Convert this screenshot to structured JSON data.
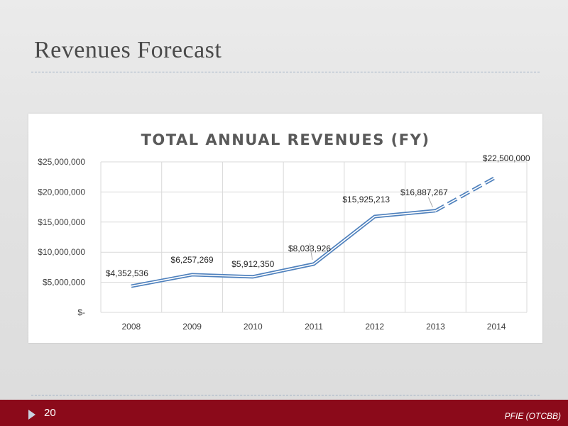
{
  "slide": {
    "title": "Revenues Forecast",
    "page_number": "20",
    "footer_label": "PFIE (OTCBB)"
  },
  "colors": {
    "title_text": "#4a4a4a",
    "footer_band": "#8b0a1a",
    "series_line": "#4f81bd",
    "gridline": "#d9d9d9"
  },
  "chart_data": {
    "type": "line",
    "title": "TOTAL ANNUAL REVENUES (FY)",
    "xlabel": "",
    "ylabel": "",
    "categories": [
      "2008",
      "2009",
      "2010",
      "2011",
      "2012",
      "2013",
      "2014"
    ],
    "y_ticks": [
      "$-",
      "$5,000,000",
      "$10,000,000",
      "$15,000,000",
      "$20,000,000",
      "$25,000,000"
    ],
    "ylim": [
      0,
      25000000
    ],
    "grid": true,
    "legend": "none",
    "series": [
      {
        "values": [
          4352536,
          6257269,
          5912350,
          8033926,
          15925213,
          16887267,
          22500000
        ],
        "labels": [
          "$4,352,536",
          "$6,257,269",
          "$5,912,350",
          "$8,033,926",
          "$15,925,213",
          "$16,887,267",
          "$22,500,000"
        ],
        "line_style": "double solid for actuals; dashed for 2013-2014 forecast"
      }
    ]
  }
}
